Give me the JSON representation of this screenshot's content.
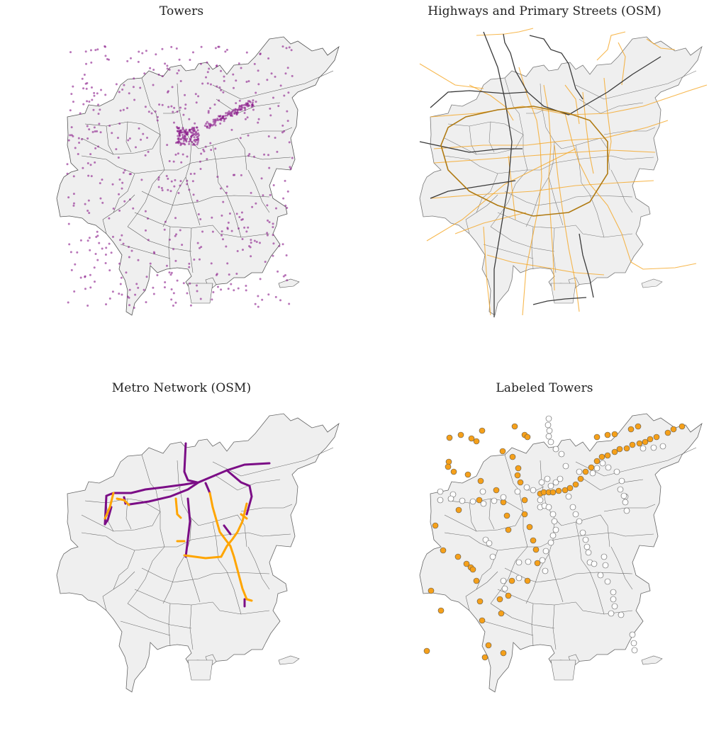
{
  "figure": {
    "panels": [
      {
        "id": "towers",
        "title": "Towers"
      },
      {
        "id": "highways",
        "title": "Highways and Primary Streets (OSM)"
      },
      {
        "id": "metro",
        "title": "Metro Network (OSM)"
      },
      {
        "id": "labeled",
        "title": "Labeled Towers"
      }
    ]
  },
  "colors": {
    "region_fill": "#efefef",
    "region_stroke": "#555555",
    "tower_dot": "#8b1a8b",
    "highway": "#3a3a3a",
    "primary_street": "#f5a623",
    "metro_purple": "#7b0d86",
    "metro_orange": "#ffa500",
    "label_positive": "#f5a01a",
    "label_negative": "#ffffff"
  },
  "legend": {
    "metro": [
      "purple segments",
      "orange segments"
    ],
    "labeled_towers": [
      "orange = labeled near metro",
      "white = other"
    ]
  }
}
